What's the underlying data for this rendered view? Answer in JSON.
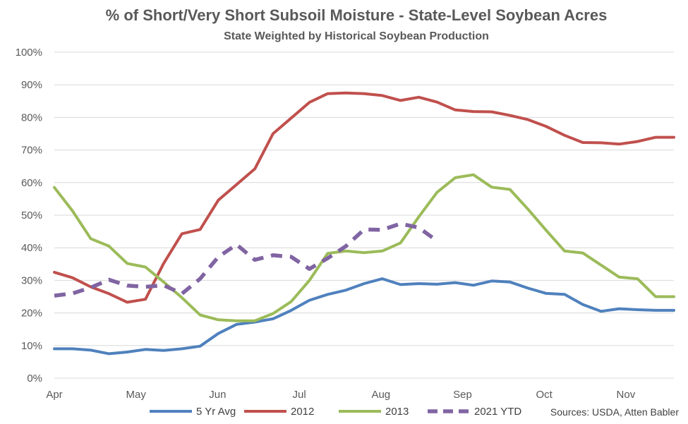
{
  "chart_data": {
    "type": "line",
    "title": "% of Short/Very Short Subsoil Moisture - State-Level Soybean Acres",
    "subtitle": "State Weighted by Historical Soybean Production",
    "xlabel": "",
    "ylabel": "",
    "ylim": [
      0,
      100
    ],
    "y_ticks": [
      "0%",
      "10%",
      "20%",
      "30%",
      "40%",
      "50%",
      "60%",
      "70%",
      "80%",
      "90%",
      "100%"
    ],
    "x_ticks": [
      "Apr",
      "May",
      "Jun",
      "Jul",
      "Aug",
      "Sep",
      "Oct",
      "Nov"
    ],
    "grid": true,
    "legend_position": "bottom",
    "source": "Sources: USDA, Atten Babler",
    "x_unit": "weeks from Apr 1",
    "series": [
      {
        "name": "5 Yr Avg",
        "color": "#4f81bd",
        "dash": "solid",
        "x": [
          0,
          1,
          2,
          3,
          4,
          5,
          6,
          7,
          8,
          9,
          10,
          11,
          12,
          13,
          14,
          15,
          16,
          17,
          18,
          19,
          20,
          21,
          22,
          23,
          24,
          25,
          26,
          27,
          28,
          29,
          30,
          31,
          32,
          33,
          34
        ],
        "values": [
          9,
          9,
          8.6,
          7.5,
          8,
          8.8,
          8.5,
          9,
          9.8,
          13.7,
          16.5,
          17.2,
          18.2,
          20.8,
          23.9,
          25.7,
          27,
          29,
          30.5,
          28.7,
          29,
          28.8,
          29.3,
          28.5,
          29.8,
          29.5,
          27.6,
          26,
          25.7,
          22.6,
          20.5,
          21.3,
          21,
          20.8,
          20.8
        ]
      },
      {
        "name": "2012",
        "color": "#c0504d",
        "dash": "solid",
        "x": [
          0,
          1,
          2,
          3,
          4,
          5,
          6,
          7,
          8,
          9,
          10,
          11,
          12,
          13,
          14,
          15,
          16,
          17,
          18,
          19,
          20,
          21,
          22,
          23,
          24,
          25,
          26,
          27,
          28,
          29,
          30,
          31,
          32,
          33,
          34
        ],
        "values": [
          32.5,
          30.8,
          28,
          25.9,
          23.3,
          24.2,
          35.2,
          44.3,
          45.6,
          54.6,
          59.4,
          64.2,
          75,
          79.8,
          84.6,
          87.3,
          87.5,
          87.3,
          86.7,
          85.2,
          86.2,
          84.7,
          82.3,
          81.8,
          81.7,
          80.6,
          79.3,
          77.2,
          74.5,
          72.3,
          72.2,
          71.8,
          72.6,
          73.9,
          73.9
        ]
      },
      {
        "name": "2013",
        "color": "#9bbb59",
        "dash": "solid",
        "x": [
          0,
          1,
          2,
          3,
          4,
          5,
          6,
          7,
          8,
          9,
          10,
          11,
          12,
          13,
          14,
          15,
          16,
          17,
          18,
          19,
          20,
          21,
          22,
          23,
          24,
          25,
          26,
          27,
          28,
          29,
          30,
          31,
          32,
          33,
          34
        ],
        "values": [
          58.5,
          51.3,
          42.8,
          40.5,
          35.2,
          34.1,
          29.5,
          24.7,
          19.4,
          17.9,
          17.6,
          17.6,
          19.8,
          23.5,
          30,
          38.3,
          39,
          38.5,
          39,
          41.5,
          49.5,
          57,
          61.5,
          62.4,
          58.6,
          57.9,
          51.8,
          45.3,
          39,
          38.4,
          34.7,
          31,
          30.5,
          25,
          25
        ]
      },
      {
        "name": "2021 YTD",
        "color": "#8064a2",
        "dash": "dashed",
        "x": [
          0,
          1,
          2,
          3,
          4,
          5,
          6,
          7,
          8,
          9,
          10,
          11,
          12,
          13,
          14,
          15,
          16,
          17,
          18,
          19,
          20,
          21
        ],
        "values": [
          25.3,
          26,
          27.8,
          30.2,
          28.4,
          28,
          28.5,
          25.9,
          30.5,
          37.2,
          41,
          36.3,
          37.7,
          37.2,
          33.5,
          36.8,
          40.5,
          45.6,
          45.5,
          47.4,
          46.2,
          42.1
        ]
      }
    ]
  }
}
